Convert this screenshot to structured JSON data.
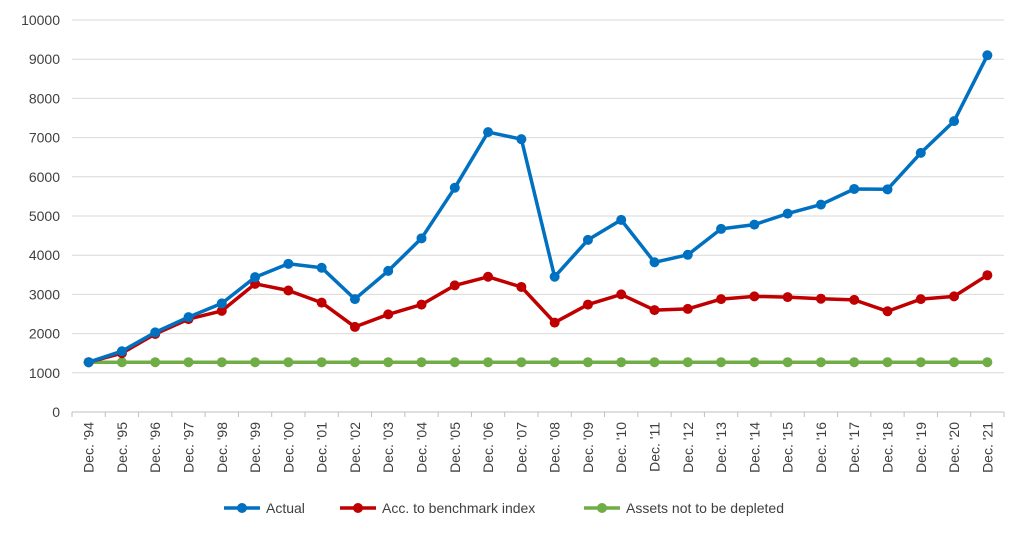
{
  "chart_data": {
    "type": "line",
    "categories": [
      "Dec. '94",
      "Dec. '95",
      "Dec. '96",
      "Dec. '97",
      "Dec. '98",
      "Dec. '99",
      "Dec. '00",
      "Dec. '01",
      "Dec. '02",
      "Dec. '03",
      "Dec. '04",
      "Dec. '05",
      "Dec. '06",
      "Dec. '07",
      "Dec. '08",
      "Dec. '09",
      "Dec. '10",
      "Dec. '11",
      "Dec. '12",
      "Dec. '13",
      "Dec. '14",
      "Dec. '15",
      "Dec. '16",
      "Dec. '17",
      "Dec. '18",
      "Dec. '19",
      "Dec. '20",
      "Dec. '21"
    ],
    "series": [
      {
        "name": "Actual",
        "color": "#0070C0",
        "values": [
          1270,
          1550,
          2030,
          2420,
          2770,
          3440,
          3780,
          3680,
          2880,
          3600,
          4430,
          5720,
          7140,
          6960,
          3450,
          4390,
          4900,
          3820,
          4010,
          4670,
          4780,
          5060,
          5290,
          5690,
          5680,
          6610,
          7420,
          9100
        ]
      },
      {
        "name": "Acc. to benchmark index",
        "color": "#C00000",
        "values": [
          1270,
          1500,
          1990,
          2370,
          2580,
          3270,
          3100,
          2790,
          2170,
          2490,
          2740,
          3230,
          3450,
          3190,
          2280,
          2740,
          3000,
          2600,
          2630,
          2880,
          2950,
          2930,
          2890,
          2860,
          2570,
          2880,
          2950,
          3490
        ]
      },
      {
        "name": "Assets not to be depleted",
        "color": "#70AD47",
        "values": [
          1270,
          1270,
          1270,
          1270,
          1270,
          1270,
          1270,
          1270,
          1270,
          1270,
          1270,
          1270,
          1270,
          1270,
          1270,
          1270,
          1270,
          1270,
          1270,
          1270,
          1270,
          1270,
          1270,
          1270,
          1270,
          1270,
          1270,
          1270
        ]
      }
    ],
    "ylim": [
      0,
      10000
    ],
    "yticks": [
      "0",
      "1000",
      "2000",
      "3000",
      "4000",
      "5000",
      "6000",
      "7000",
      "8000",
      "9000",
      "10000"
    ],
    "grid": true,
    "legend_position": "bottom",
    "title": "",
    "xlabel": "",
    "ylabel": ""
  }
}
